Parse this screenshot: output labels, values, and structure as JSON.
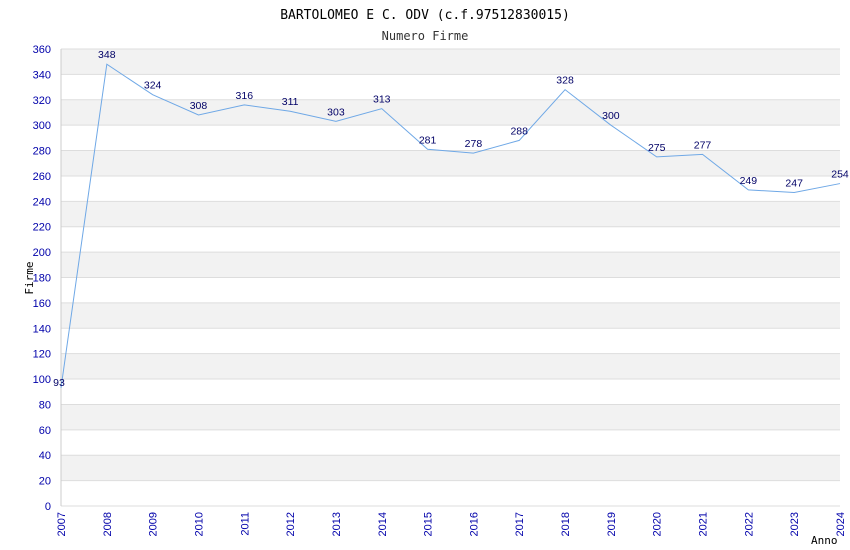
{
  "chart_data": {
    "type": "line",
    "title": "BARTOLOMEO E C. ODV (c.f.97512830015)",
    "subtitle": "Numero Firme",
    "xlabel": "Anno",
    "ylabel": "Firme",
    "x": [
      "2007",
      "2008",
      "2009",
      "2010",
      "2011",
      "2012",
      "2013",
      "2014",
      "2015",
      "2016",
      "2017",
      "2018",
      "2019",
      "2020",
      "2021",
      "2022",
      "2023",
      "2024"
    ],
    "series": [
      {
        "values": [
          93,
          348,
          324,
          308,
          316,
          311,
          303,
          313,
          281,
          278,
          288,
          328,
          300,
          275,
          277,
          249,
          247,
          254
        ]
      }
    ],
    "ylim": [
      0,
      360
    ],
    "ytick_step": 20,
    "grid": true,
    "colors": {
      "line": "#6fa8e6",
      "band": "#f2f2f2",
      "grid": "#dddddd",
      "tick": "#0000aa",
      "data_label": "#000066"
    }
  }
}
